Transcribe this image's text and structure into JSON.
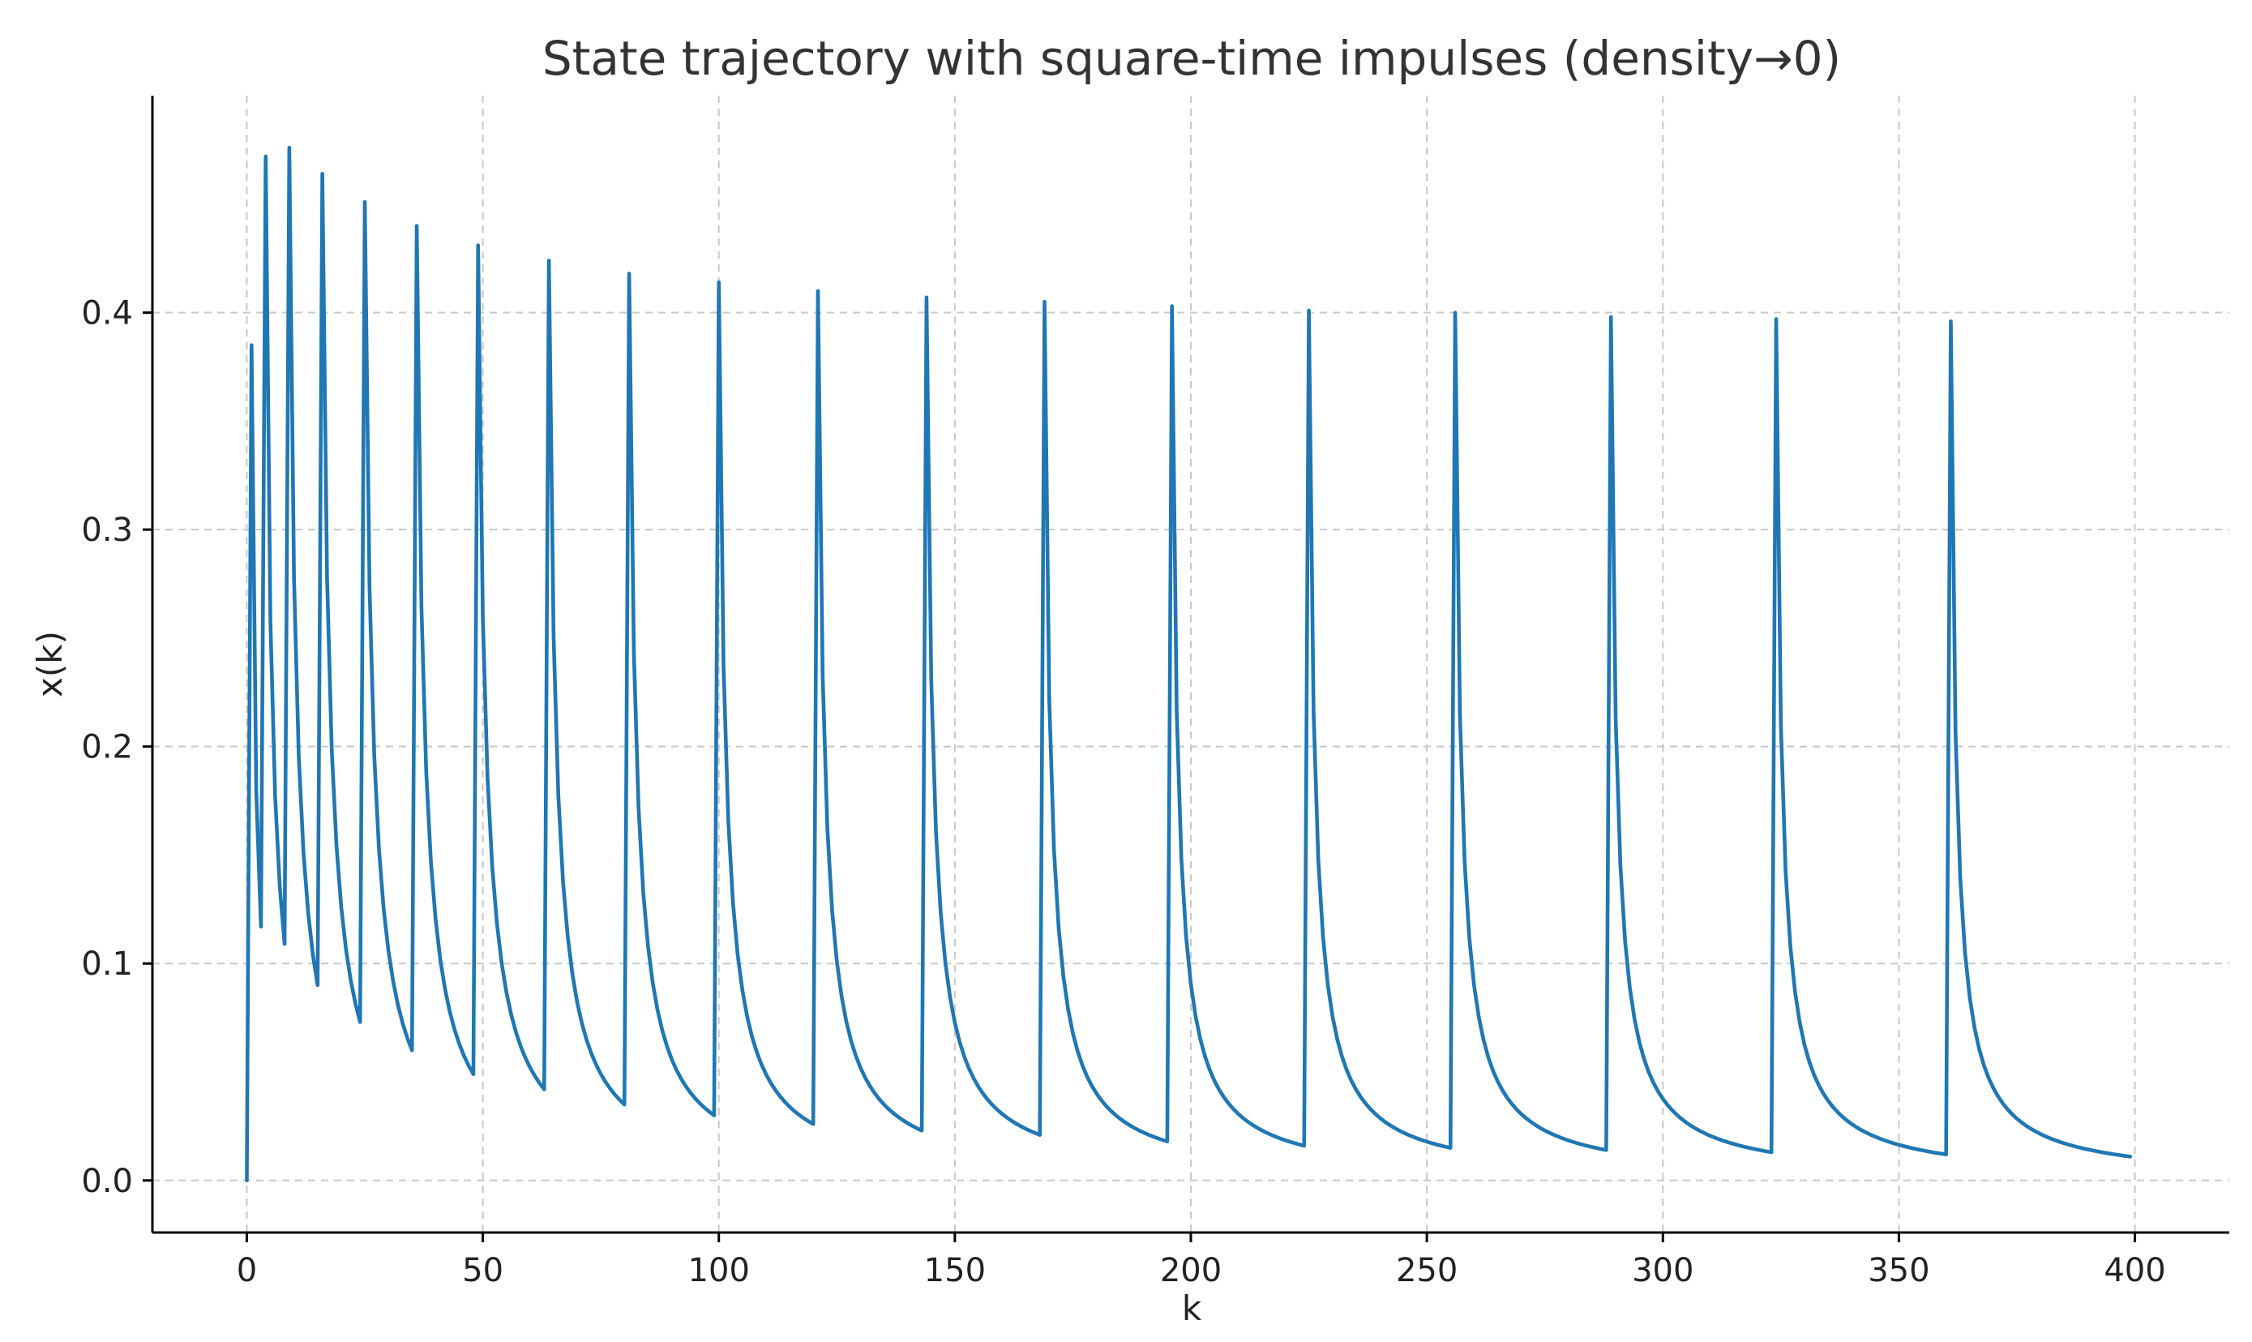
{
  "chart_data": {
    "type": "line",
    "title": "State trajectory with square-time impulses (density→0)",
    "xlabel": "k",
    "ylabel": "x(k)",
    "xlim": [
      -20,
      420
    ],
    "ylim": [
      -0.024,
      0.5
    ],
    "xticks": [
      0,
      50,
      100,
      150,
      200,
      250,
      300,
      350,
      400
    ],
    "yticks": [
      0.0,
      0.1,
      0.2,
      0.3,
      0.4
    ],
    "ytick_labels": [
      "0.0",
      "0.1",
      "0.2",
      "0.3",
      "0.4"
    ],
    "grid": true,
    "legend": "none",
    "color": "#1f77b4",
    "impulse_times": [
      1,
      4,
      9,
      16,
      25,
      36,
      49,
      64,
      81,
      100,
      121,
      144,
      169,
      196,
      225,
      256,
      289,
      324,
      361
    ],
    "peak_values": [
      0.385,
      0.472,
      0.476,
      0.464,
      0.451,
      0.44,
      0.431,
      0.424,
      0.418,
      0.414,
      0.41,
      0.407,
      0.405,
      0.403,
      0.401,
      0.4,
      0.398,
      0.397,
      0.396
    ],
    "trough_values": [
      0.117,
      0.109,
      0.09,
      0.073,
      0.06,
      0.049,
      0.042,
      0.035,
      0.03,
      0.026,
      0.023,
      0.021,
      0.018,
      0.016,
      0.015,
      0.014,
      0.013,
      0.012,
      0.011
    ],
    "x_start": 0,
    "y_start": 0.0,
    "x_end": 399
  }
}
